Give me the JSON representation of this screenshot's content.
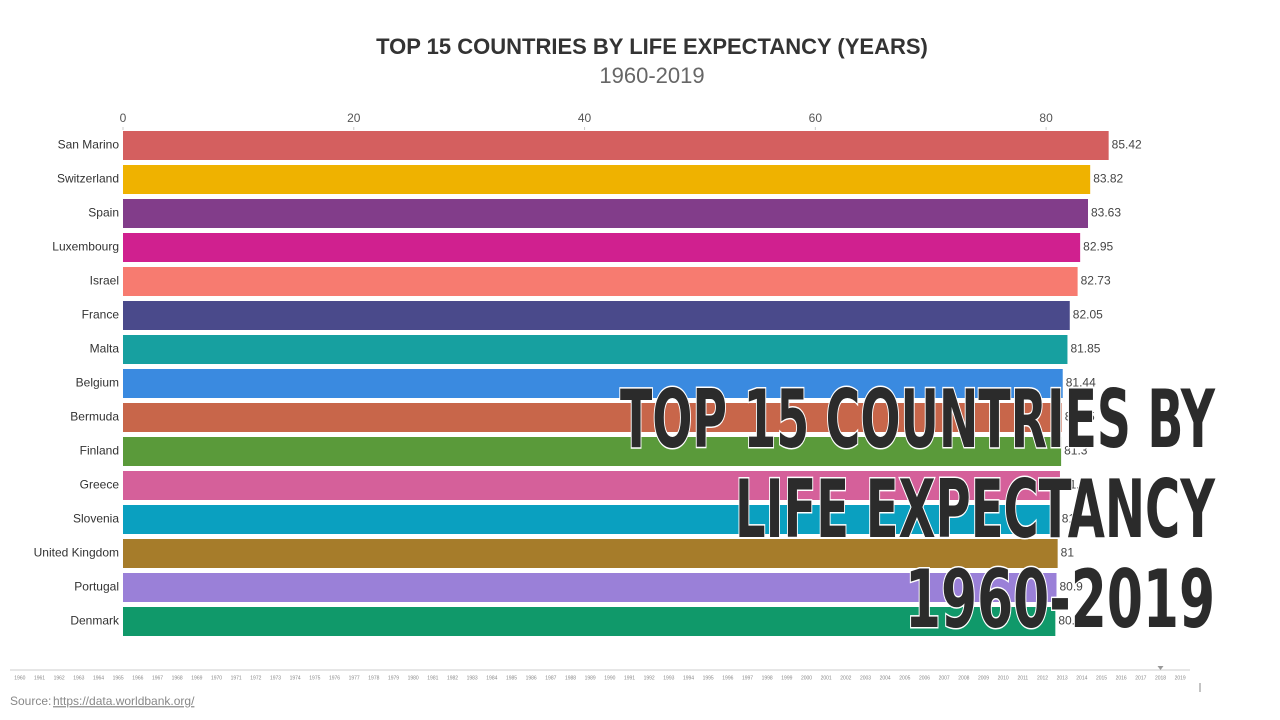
{
  "chart_data": {
    "type": "barh",
    "title": "TOP 15 COUNTRIES BY LIFE EXPECTANCY (YEARS)",
    "subtitle": "1960-2019",
    "categories": [
      "San Marino",
      "Switzerland",
      "Spain",
      "Luxembourg",
      "Israel",
      "France",
      "Malta",
      "Belgium",
      "Bermuda",
      "Finland",
      "Greece",
      "Slovenia",
      "United Kingdom",
      "Portugal",
      "Denmark"
    ],
    "values": [
      85.42,
      83.82,
      83.63,
      82.95,
      82.73,
      82.05,
      81.85,
      81.44,
      81.35,
      81.3,
      81.2,
      81.1,
      81.0,
      80.9,
      80.8
    ],
    "colors": [
      "#d45f5f",
      "#efb200",
      "#823d8a",
      "#d0208f",
      "#f77b70",
      "#4a4a8b",
      "#17a0a0",
      "#3a8ae0",
      "#c8664a",
      "#5a9a3a",
      "#d5609a",
      "#0aa0c0",
      "#a67c2a",
      "#9a80d8",
      "#10996a"
    ],
    "xlim": [
      0,
      90
    ],
    "xticks": [
      0,
      20,
      40,
      60,
      80
    ]
  },
  "overlay": [
    "TOP 15 COUNTRIES BY",
    "LIFE EXPECTANCY",
    "1960-2019"
  ],
  "timeline": {
    "years": [
      1960,
      1961,
      1962,
      1963,
      1964,
      1965,
      1966,
      1967,
      1968,
      1969,
      1970,
      1971,
      1972,
      1973,
      1974,
      1975,
      1976,
      1977,
      1978,
      1979,
      1980,
      1981,
      1982,
      1983,
      1984,
      1985,
      1986,
      1987,
      1988,
      1989,
      1990,
      1991,
      1992,
      1993,
      1994,
      1995,
      1996,
      1997,
      1998,
      1999,
      2000,
      2001,
      2002,
      2003,
      2004,
      2005,
      2006,
      2007,
      2008,
      2009,
      2010,
      2011,
      2012,
      2013,
      2014,
      2015,
      2016,
      2017,
      2018,
      2019
    ],
    "current": 2018
  },
  "source_label": "Source:",
  "source_url": "https://data.worldbank.org/"
}
